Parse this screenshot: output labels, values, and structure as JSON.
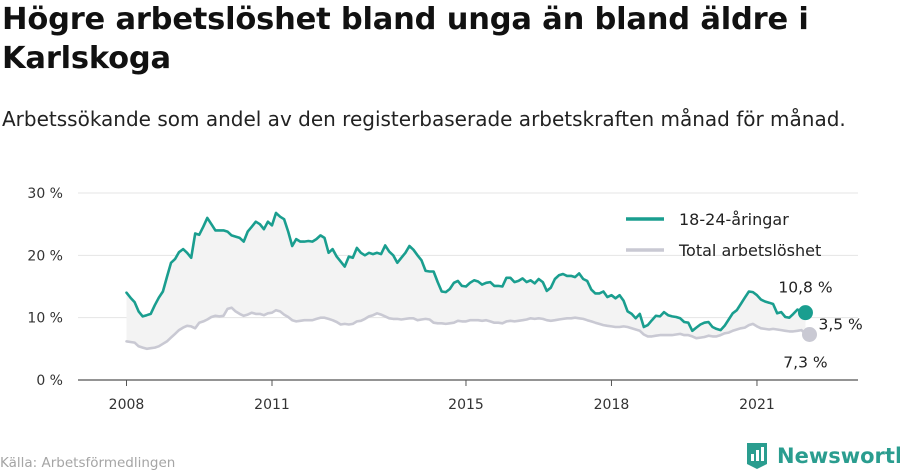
{
  "header": {
    "title": "Högre arbetslöshet bland unga än bland äldre i Karlskoga",
    "subtitle": "Arbetssökande som andel av den registerbaserade arbetskraften månad för månad."
  },
  "footer": {
    "source": "Källa: Arbetsförmedlingen",
    "brand": "Newsworthy"
  },
  "colors": {
    "youth": "#1a9e8f",
    "total": "#c9c9d3",
    "band": "#f3f3f3",
    "grid": "#e4e4e4",
    "brand": "#2a9d8f"
  },
  "chart_data": {
    "type": "line",
    "x_start": "2008-01",
    "x_step": "month",
    "xticks": [
      {
        "x": "2008-01",
        "label": "2008"
      },
      {
        "x": "2011-01",
        "label": "2011"
      },
      {
        "x": "2015-01",
        "label": "2015"
      },
      {
        "x": "2018-01",
        "label": "2018"
      },
      {
        "x": "2021-01",
        "label": "2021"
      }
    ],
    "xlim": [
      "2007-01",
      "2023-02"
    ],
    "ylim": [
      0,
      30
    ],
    "yticks": [
      {
        "value": 0,
        "label": "0 %"
      },
      {
        "value": 10,
        "label": "10 %"
      },
      {
        "value": 20,
        "label": "20 %"
      },
      {
        "value": 30,
        "label": "30 %"
      }
    ],
    "grid": true,
    "legend_position": "top-right",
    "series": [
      {
        "name": "18-24-åringar",
        "values": [
          14.0,
          13.2,
          12.5,
          11.0,
          10.2,
          10.4,
          10.6,
          12.0,
          13.2,
          14.2,
          16.5,
          18.8,
          19.4,
          20.5,
          21.0,
          20.4,
          19.6,
          23.5,
          23.3,
          24.6,
          26.0,
          25.0,
          24.0,
          24.0,
          24.0,
          23.8,
          23.2,
          23.0,
          22.8,
          22.2,
          23.8,
          24.6,
          25.4,
          25.0,
          24.2,
          25.4,
          24.8,
          26.8,
          26.2,
          25.8,
          23.8,
          21.5,
          22.6,
          22.2,
          22.2,
          22.3,
          22.2,
          22.6,
          23.2,
          22.8,
          20.4,
          21.0,
          19.8,
          19.0,
          18.2,
          19.8,
          19.6,
          21.2,
          20.4,
          20.0,
          20.4,
          20.2,
          20.4,
          20.2,
          21.6,
          20.6,
          20.0,
          18.8,
          19.6,
          20.4,
          21.5,
          20.9,
          20.0,
          19.2,
          17.5,
          17.4,
          17.4,
          15.7,
          14.2,
          14.1,
          14.6,
          15.6,
          15.9,
          15.1,
          15.0,
          15.6,
          16.0,
          15.8,
          15.3,
          15.6,
          15.7,
          15.1,
          15.1,
          15.0,
          16.4,
          16.4,
          15.7,
          15.9,
          16.3,
          15.7,
          16.0,
          15.5,
          16.2,
          15.7,
          14.3,
          14.8,
          16.2,
          16.8,
          17.0,
          16.7,
          16.7,
          16.5,
          17.1,
          16.2,
          15.9,
          14.5,
          13.9,
          13.9,
          14.2,
          13.3,
          13.6,
          13.1,
          13.6,
          12.7,
          11.0,
          10.6,
          9.9,
          10.6,
          8.5,
          8.8,
          9.6,
          10.3,
          10.2,
          10.9,
          10.4,
          10.2,
          10.1,
          9.9,
          9.3,
          9.2,
          7.9,
          8.4,
          8.9,
          9.2,
          9.3,
          8.5,
          8.2,
          8.0,
          8.7,
          9.7,
          10.7,
          11.2,
          12.2,
          13.2,
          14.2,
          14.1,
          13.6,
          12.9,
          12.6,
          12.4,
          12.2,
          10.7,
          10.9,
          10.1,
          10.0,
          10.6,
          11.3,
          11.0,
          10.8
        ]
      },
      {
        "name": "Total arbetslöshet",
        "values": [
          6.2,
          6.1,
          6.0,
          5.4,
          5.2,
          5.0,
          5.1,
          5.2,
          5.4,
          5.8,
          6.2,
          6.8,
          7.4,
          8.0,
          8.4,
          8.7,
          8.6,
          8.3,
          9.2,
          9.4,
          9.7,
          10.1,
          10.3,
          10.2,
          10.3,
          11.4,
          11.6,
          11.0,
          10.6,
          10.3,
          10.5,
          10.8,
          10.6,
          10.6,
          10.4,
          10.7,
          10.8,
          11.2,
          11.0,
          10.5,
          10.1,
          9.6,
          9.4,
          9.5,
          9.6,
          9.6,
          9.6,
          9.8,
          10.0,
          10.0,
          9.8,
          9.6,
          9.3,
          8.9,
          9.0,
          8.9,
          9.0,
          9.4,
          9.5,
          9.8,
          10.2,
          10.4,
          10.7,
          10.5,
          10.2,
          9.9,
          9.8,
          9.8,
          9.7,
          9.8,
          9.9,
          9.9,
          9.6,
          9.7,
          9.8,
          9.7,
          9.2,
          9.1,
          9.1,
          9.0,
          9.1,
          9.2,
          9.5,
          9.4,
          9.4,
          9.6,
          9.6,
          9.6,
          9.5,
          9.6,
          9.4,
          9.2,
          9.2,
          9.1,
          9.4,
          9.5,
          9.4,
          9.5,
          9.6,
          9.7,
          9.9,
          9.8,
          9.9,
          9.8,
          9.6,
          9.5,
          9.6,
          9.7,
          9.8,
          9.9,
          9.9,
          10.0,
          9.9,
          9.8,
          9.6,
          9.4,
          9.2,
          9.0,
          8.8,
          8.7,
          8.6,
          8.5,
          8.5,
          8.6,
          8.5,
          8.3,
          8.1,
          7.9,
          7.3,
          7.0,
          7.0,
          7.1,
          7.2,
          7.2,
          7.2,
          7.2,
          7.3,
          7.4,
          7.2,
          7.2,
          7.0,
          6.7,
          6.8,
          6.9,
          7.1,
          7.0,
          7.0,
          7.2,
          7.5,
          7.6,
          7.9,
          8.1,
          8.3,
          8.4,
          8.8,
          9.0,
          8.6,
          8.3,
          8.2,
          8.1,
          8.2,
          8.1,
          8.0,
          7.9,
          7.8,
          7.8,
          7.9,
          8.0,
          7.4,
          7.3
        ]
      }
    ],
    "annotations": [
      {
        "label": "10,8 %",
        "series": 0,
        "value": 10.8
      },
      {
        "label": "3,5 %",
        "role": "difference",
        "value": 3.5
      },
      {
        "label": "7,3 %",
        "series": 1,
        "value": 7.3
      }
    ]
  }
}
